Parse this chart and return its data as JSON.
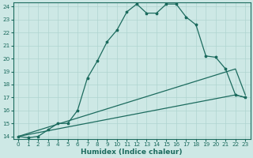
{
  "xlabel": "Humidex (Indice chaleur)",
  "bg_color": "#cde8e5",
  "grid_color": "#afd4d0",
  "line_color": "#1c6b5e",
  "spine_color": "#1c6b5e",
  "xlim": [
    -0.5,
    23.5
  ],
  "ylim": [
    13.8,
    24.3
  ],
  "yticks": [
    14,
    15,
    16,
    17,
    18,
    19,
    20,
    21,
    22,
    23,
    24
  ],
  "xticks": [
    0,
    1,
    2,
    3,
    4,
    5,
    6,
    7,
    8,
    9,
    10,
    11,
    12,
    13,
    14,
    15,
    16,
    17,
    18,
    19,
    20,
    21,
    22,
    23
  ],
  "line1_x": [
    0,
    1,
    2,
    3,
    4,
    5,
    6,
    7,
    8,
    9,
    10,
    11,
    12,
    13,
    14,
    15,
    16,
    17,
    18,
    19,
    20,
    21,
    22,
    23
  ],
  "line1_y": [
    14.0,
    13.9,
    14.0,
    14.5,
    15.0,
    15.0,
    16.0,
    18.5,
    19.8,
    21.3,
    22.2,
    23.6,
    24.2,
    23.5,
    23.5,
    24.2,
    24.2,
    23.2,
    22.6,
    20.2,
    20.1,
    19.2,
    17.2,
    17.0
  ],
  "line2_x": [
    0,
    22,
    23
  ],
  "line2_y": [
    14.0,
    19.2,
    17.2
  ],
  "line3_x": [
    0,
    22,
    23
  ],
  "line3_y": [
    14.0,
    17.2,
    17.0
  ],
  "xlabel_fontsize": 6.5,
  "tick_fontsize": 5.2,
  "lw": 0.9,
  "marker_size": 2.5
}
